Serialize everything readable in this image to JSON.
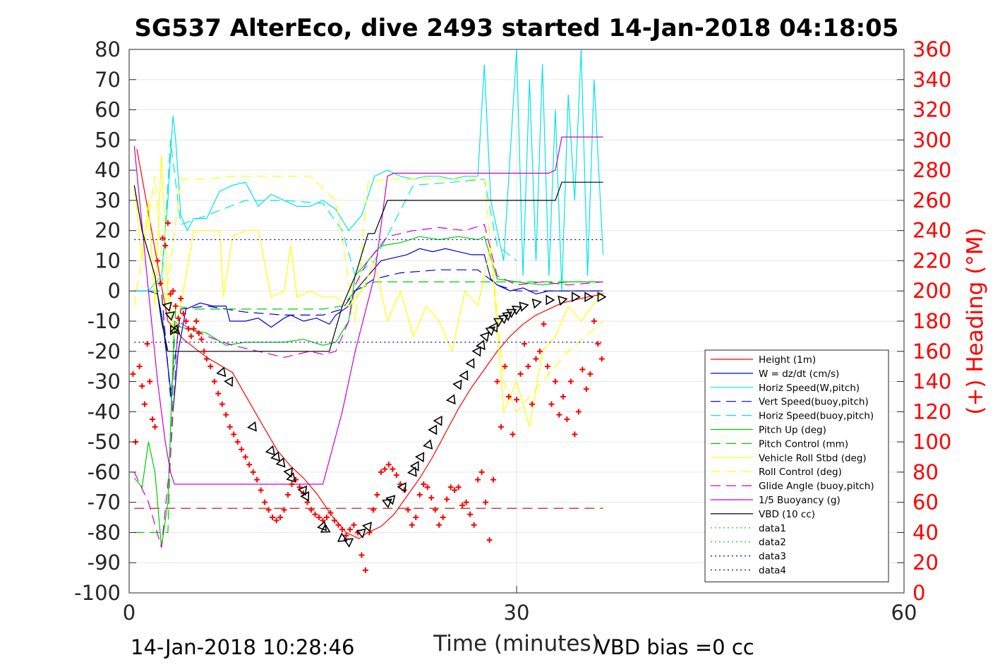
{
  "chart_data": {
    "type": "line",
    "title": "SG537 AlterEco, dive 2493 started 14-Jan-2018 04:18:05",
    "xlabel": "Time (minutes)",
    "ylabel": "",
    "y2label": "(+) Heading (°M)",
    "xlim": [
      0,
      60
    ],
    "ylim": [
      -100,
      80
    ],
    "y2lim": [
      0,
      360
    ],
    "xticks": [
      0,
      30,
      60
    ],
    "yticks": [
      80,
      70,
      60,
      50,
      40,
      30,
      20,
      10,
      0,
      -10,
      -20,
      -30,
      -40,
      -50,
      -60,
      -70,
      -80,
      -90,
      -100
    ],
    "y2ticks": [
      360,
      340,
      320,
      300,
      280,
      260,
      240,
      220,
      200,
      180,
      160,
      140,
      120,
      100,
      80,
      60,
      40,
      20,
      0
    ],
    "grid": true,
    "legend_position": "lower-right",
    "footer_left": "14-Jan-2018 10:28:46",
    "footer_right": "VBD bias =0 cc",
    "colors": {
      "axis": "#262626",
      "heading": "#ff0000",
      "grid": "#e6e6e6"
    },
    "series": [
      {
        "name": "Height (1m)",
        "color": "#ff0000",
        "style": "solid",
        "x": [
          0.6,
          3.0,
          3.6,
          4.2,
          6.0,
          8.0,
          10.0,
          11.5,
          12.5,
          13.5,
          14.5,
          15.8,
          16.8,
          17.8,
          18.5,
          19.5,
          20.5,
          21.5,
          22.5,
          23.5,
          24.5,
          25.5,
          26.5,
          27.5,
          28.5,
          29.5,
          30.5,
          31.5,
          32.5,
          33.5,
          34.5,
          35.5,
          36.7
        ],
        "y": [
          47,
          -10,
          -13,
          -16,
          -22,
          -27,
          -42,
          -53,
          -58,
          -62,
          -67,
          -75,
          -80,
          -82,
          -80,
          -78,
          -74,
          -68,
          -62,
          -55,
          -47,
          -39,
          -32,
          -26,
          -20,
          -15,
          -11,
          -8,
          -6,
          -4,
          -3,
          -2,
          -1
        ]
      },
      {
        "name": "W = dz/dt (cm/s)",
        "color": "#0000cc",
        "style": "solid",
        "x": [
          0.4,
          1.5,
          2.2,
          2.6,
          3.0,
          3.4,
          3.8,
          4.4,
          5.5,
          6.5,
          7.5,
          7.8,
          9.0,
          10.0,
          11.0,
          12.0,
          12.5,
          13.5,
          14.5,
          15.5,
          16.0,
          17.0,
          17.5,
          18.5,
          19.5,
          20.5,
          21.5,
          22.5,
          23.5,
          24.5,
          25.5,
          26.5,
          27.5,
          28.0,
          28.5,
          29.5,
          30.5,
          31.5,
          32.5,
          33.5,
          34.5,
          35.5,
          36.7
        ],
        "y": [
          0,
          0,
          -1,
          -10,
          -25,
          -40,
          -20,
          -6,
          -4,
          -5,
          -5,
          -10,
          -10,
          -9,
          -12,
          -9,
          -8,
          -10,
          -9,
          -11,
          -8,
          -5,
          0,
          5,
          10,
          11,
          12,
          14,
          13,
          14,
          13,
          12,
          12,
          4,
          2,
          0,
          1,
          -1,
          0,
          0,
          0,
          0,
          0
        ]
      },
      {
        "name": "Horiz Speed(W,pitch)",
        "color": "#00e5e5",
        "style": "solid",
        "x": [
          0.4,
          1.5,
          2.5,
          3.0,
          3.2,
          3.4,
          3.6,
          4.0,
          4.5,
          5.0,
          6.0,
          7.0,
          8.0,
          9.0,
          10.0,
          11.0,
          12.0,
          13.0,
          14.0,
          15.0,
          16.0,
          17.0,
          18.0,
          19.0,
          20.0,
          21.0,
          22.0,
          23.0,
          24.0,
          25.0,
          26.0,
          27.0,
          27.5,
          28.0,
          29.0,
          30.0,
          30.5,
          31.0,
          31.5,
          32.0,
          32.5,
          33.0,
          33.5,
          34.0,
          34.5,
          35.0,
          35.5,
          36.0,
          36.7
        ],
        "y": [
          0,
          0,
          5,
          30,
          45,
          58,
          50,
          25,
          20,
          24,
          24,
          33,
          35,
          36,
          28,
          32,
          30,
          28,
          28,
          30,
          27,
          20,
          25,
          38,
          40,
          38,
          37,
          38,
          38,
          37,
          38,
          38,
          75,
          30,
          10,
          80,
          5,
          70,
          10,
          75,
          5,
          60,
          0,
          65,
          30,
          80,
          5,
          70,
          12
        ]
      },
      {
        "name": "Vert Speed(buoy,pitch)",
        "color": "#0000cc",
        "style": "dashed",
        "x": [
          0.4,
          2.5,
          3.2,
          4.0,
          6.0,
          9.0,
          12.0,
          15.0,
          16.5,
          17.5,
          19.0,
          21.0,
          24.0,
          27.0,
          28.5,
          30.0,
          33.0,
          36.7
        ],
        "y": [
          0,
          0,
          -35,
          -6,
          -5,
          -7,
          -8,
          -8,
          -6,
          0,
          4,
          6,
          7,
          7,
          2,
          0,
          0,
          0
        ]
      },
      {
        "name": "Horiz Speed(buoy,pitch)",
        "color": "#00e5e5",
        "style": "dashed",
        "x": [
          0.4,
          2.5,
          3.2,
          4.0,
          6.0,
          9.0,
          12.0,
          15.0,
          16.5,
          17.5,
          19.0,
          22.0,
          25.0,
          27.5,
          28.5,
          30.0
        ],
        "y": [
          0,
          0,
          50,
          22,
          25,
          30,
          30,
          29,
          20,
          5,
          10,
          35,
          36,
          37,
          15,
          10
        ]
      },
      {
        "name": "Pitch Up (deg)",
        "color": "#00cc00",
        "style": "solid",
        "x": [
          0.4,
          1.0,
          1.5,
          2.0,
          2.5,
          3.0,
          3.5,
          4.0,
          5.0,
          6.0,
          7.5,
          9.0,
          10.5,
          12.0,
          13.5,
          15.0,
          16.0,
          17.0,
          17.5,
          18.5,
          19.5,
          21.0,
          22.5,
          24.0,
          25.5,
          27.0,
          27.5,
          28.5,
          30.0,
          32.0,
          34.0,
          36.7
        ],
        "y": [
          -62,
          -65,
          -50,
          -60,
          -85,
          -70,
          -10,
          -12,
          -13,
          -14,
          -18,
          -17,
          -17,
          -17,
          -16,
          -18,
          -17,
          -10,
          5,
          10,
          15,
          16,
          18,
          17,
          18,
          17,
          18,
          4,
          3,
          2,
          3,
          3
        ]
      },
      {
        "name": "Pitch Control (mm)",
        "color": "#00cc00",
        "style": "dashed",
        "x": [
          0.4,
          2.5,
          3.0,
          3.6,
          5.0,
          9.0,
          12.0,
          15.0,
          16.5,
          17.5,
          19.0,
          22.0,
          25.0,
          28.0,
          29.0,
          36.7
        ],
        "y": [
          -80,
          -80,
          -80,
          -5,
          -6,
          -6,
          -6,
          -6,
          -5,
          0,
          3,
          3,
          3,
          3,
          3,
          3
        ]
      },
      {
        "name": "Vehicle Roll Stbd (deg)",
        "color": "#ffff00",
        "style": "solid",
        "x": [
          0.4,
          1.0,
          1.5,
          2.0,
          2.5,
          3.0,
          3.5,
          4.0,
          5.0,
          6.0,
          7.0,
          7.3,
          8.0,
          9.0,
          10.0,
          11.0,
          12.0,
          12.5,
          13.0,
          14.0,
          15.0,
          16.0,
          17.0,
          18.0,
          19.0,
          20.0,
          21.0,
          22.0,
          23.0,
          24.0,
          25.0,
          26.0,
          27.0,
          28.0,
          29.0,
          30.0,
          31.0,
          32.0,
          33.0,
          34.0,
          35.0,
          36.7
        ],
        "y": [
          35,
          10,
          30,
          -5,
          45,
          0,
          -15,
          -5,
          20,
          20,
          20,
          -2,
          18,
          20,
          20,
          -2,
          0,
          15,
          -2,
          0,
          -2,
          -2,
          -5,
          0,
          10,
          -10,
          0,
          -15,
          -5,
          -10,
          -20,
          0,
          -5,
          15,
          -40,
          -30,
          -45,
          -20,
          -15,
          -5,
          -10,
          0
        ]
      },
      {
        "name": "Roll Control (deg)",
        "color": "#ffff00",
        "style": "dashed",
        "x": [
          0.4,
          2.0,
          2.8,
          4.0,
          6.0,
          8.0,
          10.0,
          12.0,
          14.0,
          16.0,
          17.5,
          18.5,
          20.0,
          22.0,
          24.0,
          26.0,
          27.5,
          29.0,
          30.0,
          32.0,
          34.0,
          36.7
        ],
        "y": [
          -5,
          38,
          -5,
          37,
          37,
          38,
          38,
          38,
          38,
          30,
          -10,
          36,
          37,
          37,
          37,
          37,
          37,
          -30,
          -40,
          -30,
          -20,
          -10
        ]
      },
      {
        "name": "Glide Angle (buoy,pitch)",
        "color": "#cc00cc",
        "style": "dashed",
        "x": [
          0.4,
          1.5,
          2.5,
          3.2,
          3.8,
          4.5,
          6.0,
          8.0,
          10.0,
          12.0,
          14.0,
          15.0,
          16.0,
          17.0,
          17.5,
          18.5,
          20.0,
          22.0,
          24.0,
          26.0,
          27.5,
          28.5,
          30.0,
          32.0,
          34.0,
          36.7
        ],
        "y": [
          -60,
          -70,
          -85,
          -55,
          -10,
          -12,
          -15,
          -18,
          -20,
          -22,
          -20,
          -21,
          -20,
          -10,
          2,
          10,
          18,
          20,
          21,
          20,
          22,
          5,
          2,
          3,
          2,
          3
        ]
      },
      {
        "name": "1/5 Buoyancy (g)",
        "color": "#cc00cc",
        "style": "solid",
        "x": [
          0.4,
          1.5,
          2.2,
          2.8,
          3.2,
          3.5,
          5.0,
          10.0,
          15.0,
          16.5,
          17.5,
          19.0,
          20.0,
          20.5,
          25.0,
          30.0,
          32.5,
          33.0,
          33.5,
          36.7
        ],
        "y": [
          48,
          0,
          -30,
          -50,
          -60,
          -64,
          -64,
          -64,
          -64,
          -40,
          -20,
          5,
          38,
          39,
          39,
          39,
          39,
          40,
          51,
          51
        ]
      },
      {
        "name": "VBD (10 cc)",
        "color": "#000000",
        "style": "solid",
        "x": [
          0.4,
          1.0,
          2.0,
          2.5,
          3.0,
          3.3,
          3.6,
          5.0,
          10.0,
          15.0,
          15.5,
          16.5,
          17.5,
          18.5,
          19.0,
          20.0,
          20.5,
          22.0,
          25.0,
          28.0,
          30.0,
          33.0,
          33.5,
          36.7
        ],
        "y": [
          35,
          20,
          5,
          -10,
          -20,
          -20,
          -20,
          -20,
          -20,
          -20,
          -20,
          -5,
          5,
          19,
          19,
          30,
          30,
          30,
          30,
          30,
          30,
          30,
          36,
          36
        ]
      },
      {
        "name": "data1",
        "color": "#00cc00",
        "style": "dotted",
        "x": [],
        "y": []
      },
      {
        "name": "data2",
        "color": "#00cc00",
        "style": "dotted",
        "x": [],
        "y": []
      },
      {
        "name": "data3",
        "color": "#0000cc",
        "style": "dotted",
        "x": [
          0.4,
          36.7
        ],
        "y": [
          -17,
          -17
        ]
      },
      {
        "name": "data4",
        "color": "#0000cc",
        "style": "dotted",
        "x": [
          0.4,
          36.7
        ],
        "y": [
          17,
          17
        ]
      }
    ],
    "reference_lines": [
      {
        "color": "#cc0000",
        "style": "dashed",
        "x": [
          0.4,
          36.7
        ],
        "y": [
          -72,
          -72
        ]
      }
    ],
    "heading_points": {
      "name": "(+) Heading (°M)",
      "color": "#ff0000",
      "marker": "+",
      "x": [
        0.3,
        0.5,
        0.8,
        1.0,
        1.2,
        1.4,
        1.6,
        1.8,
        2.0,
        2.2,
        2.4,
        2.6,
        2.8,
        3.0,
        3.2,
        3.4,
        3.6,
        3.8,
        4.0,
        4.2,
        4.4,
        4.6,
        4.8,
        5.0,
        5.2,
        5.4,
        5.6,
        5.8,
        6.0,
        6.3,
        6.6,
        6.9,
        7.2,
        7.5,
        7.8,
        8.1,
        8.4,
        8.7,
        9.0,
        9.3,
        9.6,
        9.9,
        10.2,
        10.5,
        10.8,
        11.1,
        11.4,
        11.7,
        12.0,
        12.3,
        12.6,
        12.9,
        13.2,
        13.5,
        13.8,
        14.1,
        14.4,
        14.7,
        15.0,
        15.3,
        15.6,
        15.9,
        16.2,
        16.5,
        16.8,
        17.1,
        17.4,
        17.7,
        18.0,
        18.3,
        18.6,
        18.9,
        19.2,
        19.5,
        19.8,
        20.1,
        20.4,
        20.7,
        21.0,
        21.3,
        21.6,
        21.9,
        22.2,
        22.5,
        22.8,
        23.1,
        23.4,
        23.7,
        24.0,
        24.3,
        24.6,
        24.9,
        25.2,
        25.5,
        25.8,
        26.1,
        26.4,
        26.7,
        27.0,
        27.3,
        27.6,
        27.9,
        28.2,
        28.5,
        28.8,
        29.1,
        29.4,
        29.7,
        30.0,
        30.3,
        30.6,
        30.9,
        31.2,
        31.5,
        31.8,
        32.1,
        32.4,
        32.7,
        33.0,
        33.3,
        33.6,
        33.9,
        34.2,
        34.5,
        34.8,
        35.1,
        35.4,
        35.7,
        36.0,
        36.3,
        36.6
      ],
      "y": [
        145,
        100,
        150,
        137,
        125,
        165,
        140,
        115,
        110,
        220,
        205,
        235,
        230,
        245,
        198,
        200,
        190,
        182,
        195,
        185,
        180,
        175,
        170,
        175,
        180,
        172,
        168,
        160,
        155,
        150,
        140,
        132,
        125,
        118,
        110,
        105,
        100,
        95,
        90,
        85,
        80,
        75,
        68,
        60,
        55,
        50,
        48,
        50,
        55,
        65,
        72,
        75,
        70,
        66,
        60,
        55,
        52,
        50,
        48,
        50,
        53,
        48,
        45,
        42,
        38,
        42,
        45,
        40,
        25,
        15,
        40,
        55,
        65,
        80,
        82,
        85,
        82,
        78,
        72,
        68,
        55,
        45,
        50,
        65,
        72,
        70,
        63,
        55,
        45,
        50,
        62,
        70,
        68,
        70,
        58,
        60,
        52,
        45,
        75,
        80,
        60,
        35,
        75,
        140,
        110,
        150,
        130,
        105,
        128,
        145,
        165,
        150,
        125,
        155,
        160,
        178,
        150,
        125,
        140,
        118,
        130,
        115,
        140,
        105,
        120,
        148,
        135,
        145,
        180,
        165,
        155
      ]
    },
    "depth_triangles": {
      "color": "#000000",
      "marker": "triangle",
      "x": [
        3.0,
        3.2,
        3.4,
        3.6,
        7.2,
        7.8,
        9.6,
        11.0,
        11.4,
        11.8,
        12.4,
        12.6,
        13.5,
        13.7,
        15.0,
        15.2,
        16.5,
        17.0,
        18.0,
        18.5,
        20.0,
        20.3,
        21.2,
        22.0,
        22.2,
        22.6,
        23.2,
        23.6,
        24.0,
        25.0,
        25.5,
        26.0,
        26.5,
        27.0,
        27.3,
        27.6,
        28.0,
        28.3,
        28.6,
        29.0,
        29.3,
        29.6,
        30.0,
        30.5,
        31.5,
        32.5,
        33.5,
        34.5,
        35.5,
        36.5
      ],
      "y": [
        -5,
        -8,
        -13,
        -13,
        -27,
        -30,
        -45,
        -53,
        -55,
        -57,
        -60,
        -62,
        -66,
        -68,
        -78,
        -79,
        -82,
        -83,
        -80,
        -78,
        -70,
        -69,
        -65,
        -60,
        -58,
        -55,
        -51,
        -46,
        -43,
        -36,
        -31,
        -28,
        -24,
        -20,
        -18,
        -15,
        -13,
        -12,
        -10,
        -9,
        -8,
        -7,
        -6,
        -5,
        -4,
        -3,
        -3,
        -2,
        -2,
        -2
      ]
    }
  }
}
